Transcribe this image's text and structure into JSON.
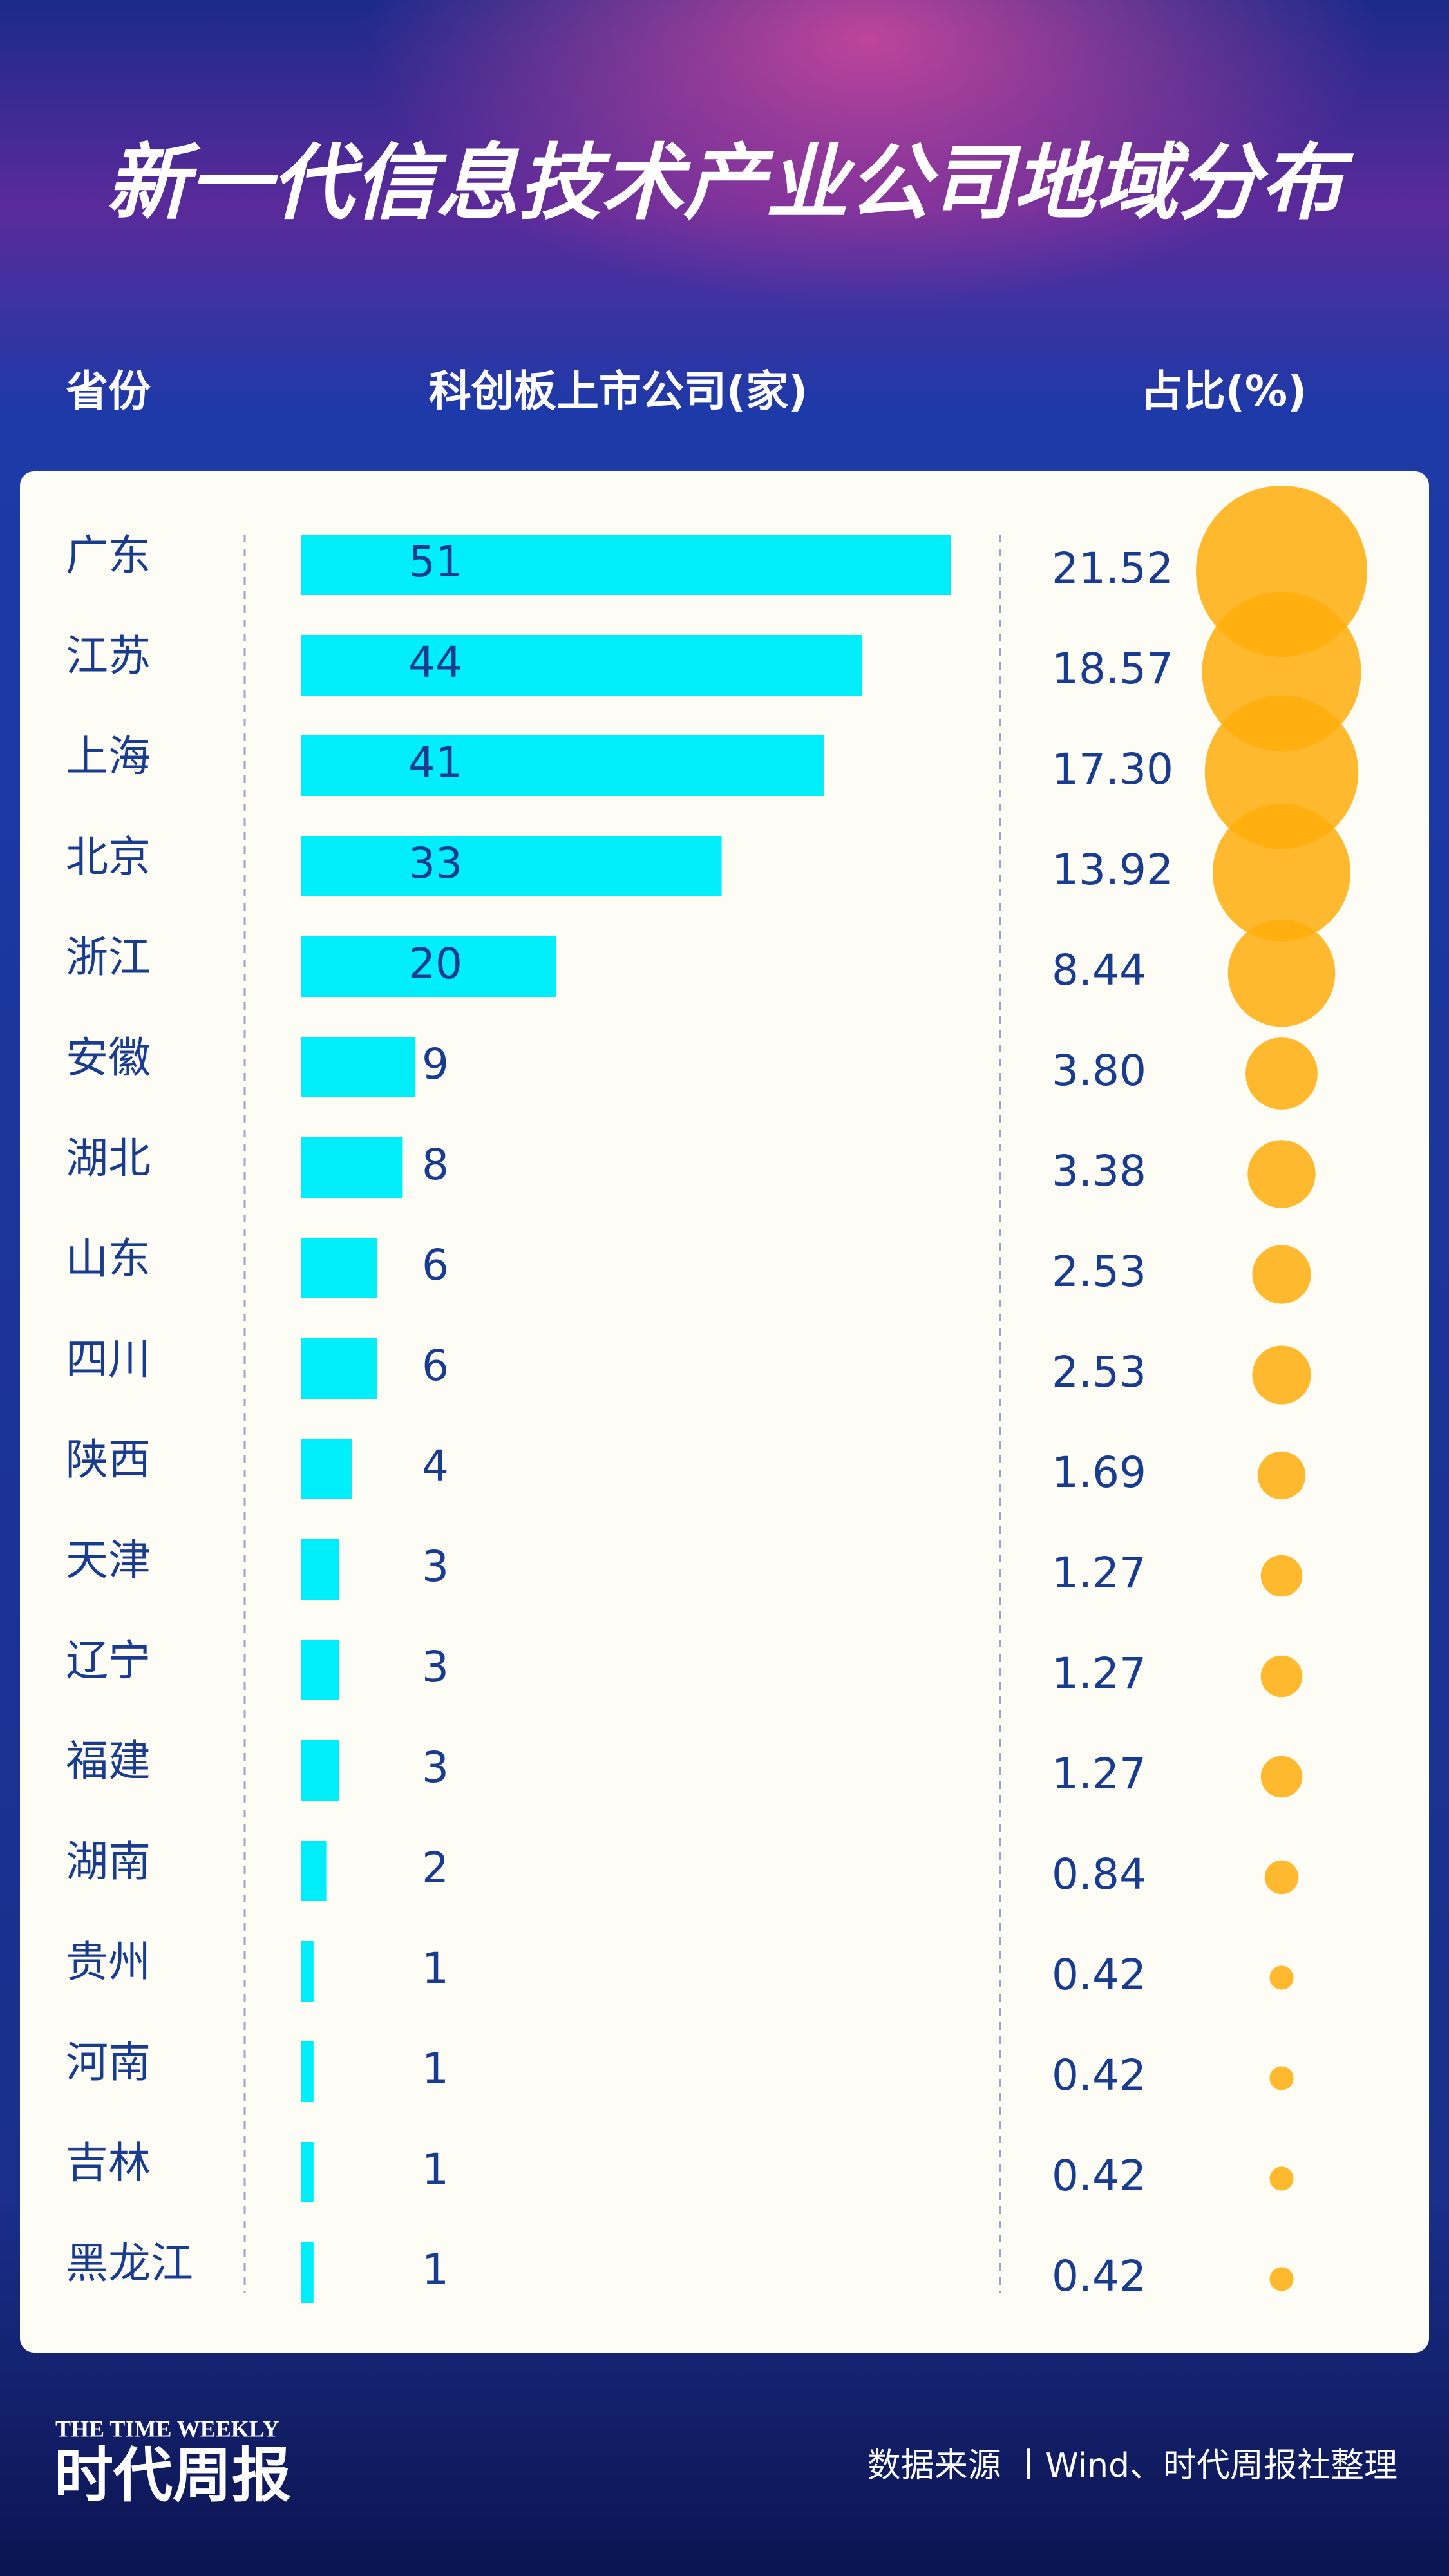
{
  "chart_data": {
    "type": "bar",
    "title": "新一代信息技术产业公司地域分布",
    "category_label": "省份",
    "categories": [
      "广东",
      "江苏",
      "上海",
      "北京",
      "浙江",
      "安徽",
      "湖北",
      "山东",
      "四川",
      "陕西",
      "天津",
      "辽宁",
      "福建",
      "湖南",
      "贵州",
      "河南",
      "吉林",
      "黑龙江"
    ],
    "series": [
      {
        "name": "科创板上市公司(家)",
        "color": "#00eefa",
        "values": [
          51,
          44,
          41,
          33,
          20,
          9,
          8,
          6,
          6,
          4,
          3,
          3,
          3,
          2,
          1,
          1,
          1,
          1
        ]
      },
      {
        "name": "占比(%)",
        "color": "#ffad0a",
        "values": [
          21.52,
          18.57,
          17.3,
          13.92,
          8.44,
          3.8,
          3.38,
          2.53,
          2.53,
          1.69,
          1.27,
          1.27,
          1.27,
          0.84,
          0.42,
          0.42,
          0.42,
          0.42
        ],
        "value_labels": [
          "21.52",
          "18.57",
          "17.30",
          "13.92",
          "8.44",
          "3.80",
          "3.38",
          "2.53",
          "2.53",
          "1.69",
          "1.27",
          "1.27",
          "1.27",
          "0.84",
          "0.42",
          "0.42",
          "0.42",
          "0.42"
        ]
      }
    ],
    "xlim": [
      0,
      51
    ],
    "source": "数据来源 丨Wind、时代周报社整理"
  },
  "logo": {
    "en": "THE TIME WEEKLY",
    "cn": "时代周报"
  }
}
